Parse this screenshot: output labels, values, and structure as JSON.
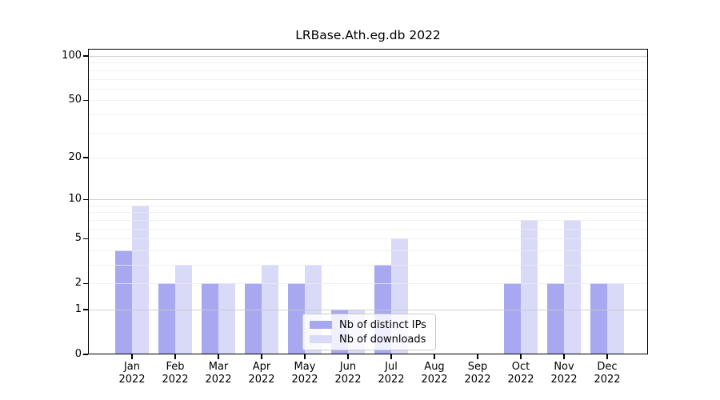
{
  "figure": {
    "title": "LRBase.Ath.eg.db 2022"
  },
  "chart_data": {
    "type": "bar",
    "title": "LRBase.Ath.eg.db 2022",
    "categories": [
      "Jan",
      "Feb",
      "Mar",
      "Apr",
      "May",
      "Jun",
      "Jul",
      "Aug",
      "Sep",
      "Oct",
      "Nov",
      "Dec"
    ],
    "x_tick_year": "2022",
    "series": [
      {
        "name": "Nb of distinct IPs",
        "color": "#a8a8f0",
        "values": [
          4,
          2,
          2,
          2,
          2,
          1,
          3,
          0,
          0,
          2,
          2,
          2
        ]
      },
      {
        "name": "Nb of downloads",
        "color": "#d9d9f8",
        "values": [
          9,
          3,
          2,
          3,
          3,
          1,
          5,
          0,
          0,
          7,
          7,
          2
        ]
      }
    ],
    "yscale": "log1p",
    "ylim": [
      0,
      100
    ],
    "yticks": [
      0,
      1,
      2,
      5,
      10,
      20,
      50,
      100
    ],
    "major_gridlines": [
      1,
      10,
      100
    ],
    "minor_gridlines": [
      2,
      3,
      4,
      5,
      6,
      7,
      8,
      9,
      20,
      30,
      40,
      50,
      60,
      70,
      80,
      90
    ],
    "grid": true,
    "legend_position": "lower center"
  },
  "colors": {
    "major_grid": "#c9c9c9",
    "minor_grid": "#ebebeb",
    "spine": "#000000",
    "background": "#ffffff"
  }
}
